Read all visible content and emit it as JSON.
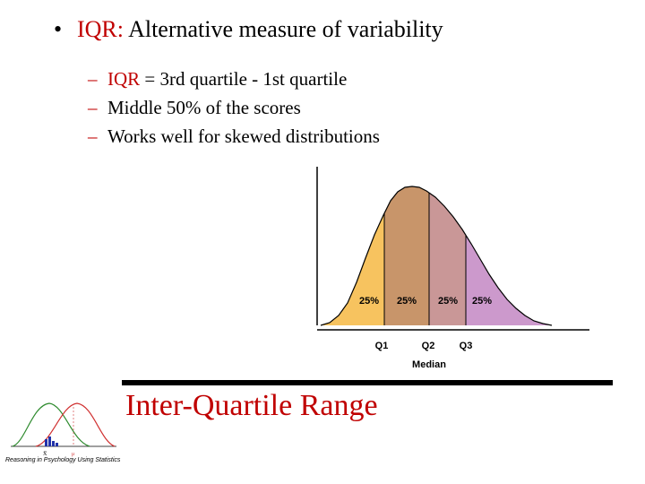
{
  "slide": {
    "bullet": {
      "symbol": "•",
      "term": "IQR:",
      "text": " Alternative measure of variability"
    },
    "sub_bullets": [
      {
        "dash": "–",
        "highlight": "IQR",
        "text": " = 3rd quartile - 1st quartile"
      },
      {
        "dash": "–",
        "highlight": "",
        "text": "Middle 50% of the scores"
      },
      {
        "dash": "–",
        "highlight": "",
        "text": "Works well for skewed distributions"
      }
    ],
    "footer_title": "Inter-Quartile Range",
    "logo": {
      "caption": "Reasoning in Psychology Using Statistics",
      "labels": [
        "X̅",
        "μ"
      ]
    }
  },
  "chart_data": {
    "type": "area",
    "segments": [
      {
        "label": "25%",
        "color": "#f7c35f"
      },
      {
        "label": "25%",
        "color": "#c8956a"
      },
      {
        "label": "25%",
        "color": "#c99797"
      },
      {
        "label": "25%",
        "color": "#cc99cc"
      }
    ],
    "quartiles": [
      {
        "label": "Q1"
      },
      {
        "label": "Q2"
      },
      {
        "label": "Q3"
      }
    ],
    "median_label": "Median",
    "colors": {
      "accent": "#c00000",
      "outline": "#000000"
    }
  }
}
